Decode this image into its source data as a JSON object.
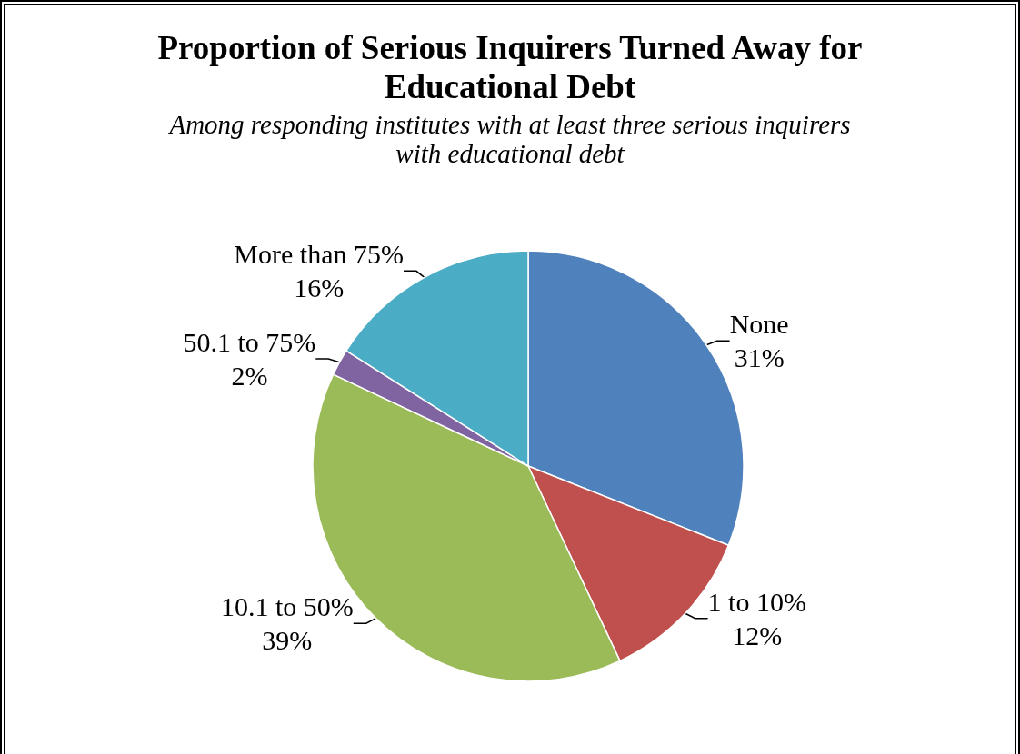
{
  "chart_data": {
    "type": "pie",
    "title": "Proportion of Serious Inquirers Turned Away for Educational Debt",
    "subtitle": "Among responding institutes with at least three serious inquirers with educational debt",
    "categories": [
      "None",
      "1 to 10%",
      "10.1 to 50%",
      "50.1 to 75%",
      "More than 75%"
    ],
    "values": [
      31,
      12,
      39,
      2,
      16
    ],
    "colors": [
      "#4f81bd",
      "#c0504d",
      "#9bbb59",
      "#8064a2",
      "#4bacc6"
    ],
    "value_labels": [
      "31%",
      "12%",
      "39%",
      "2%",
      "16%"
    ],
    "legend": false
  }
}
